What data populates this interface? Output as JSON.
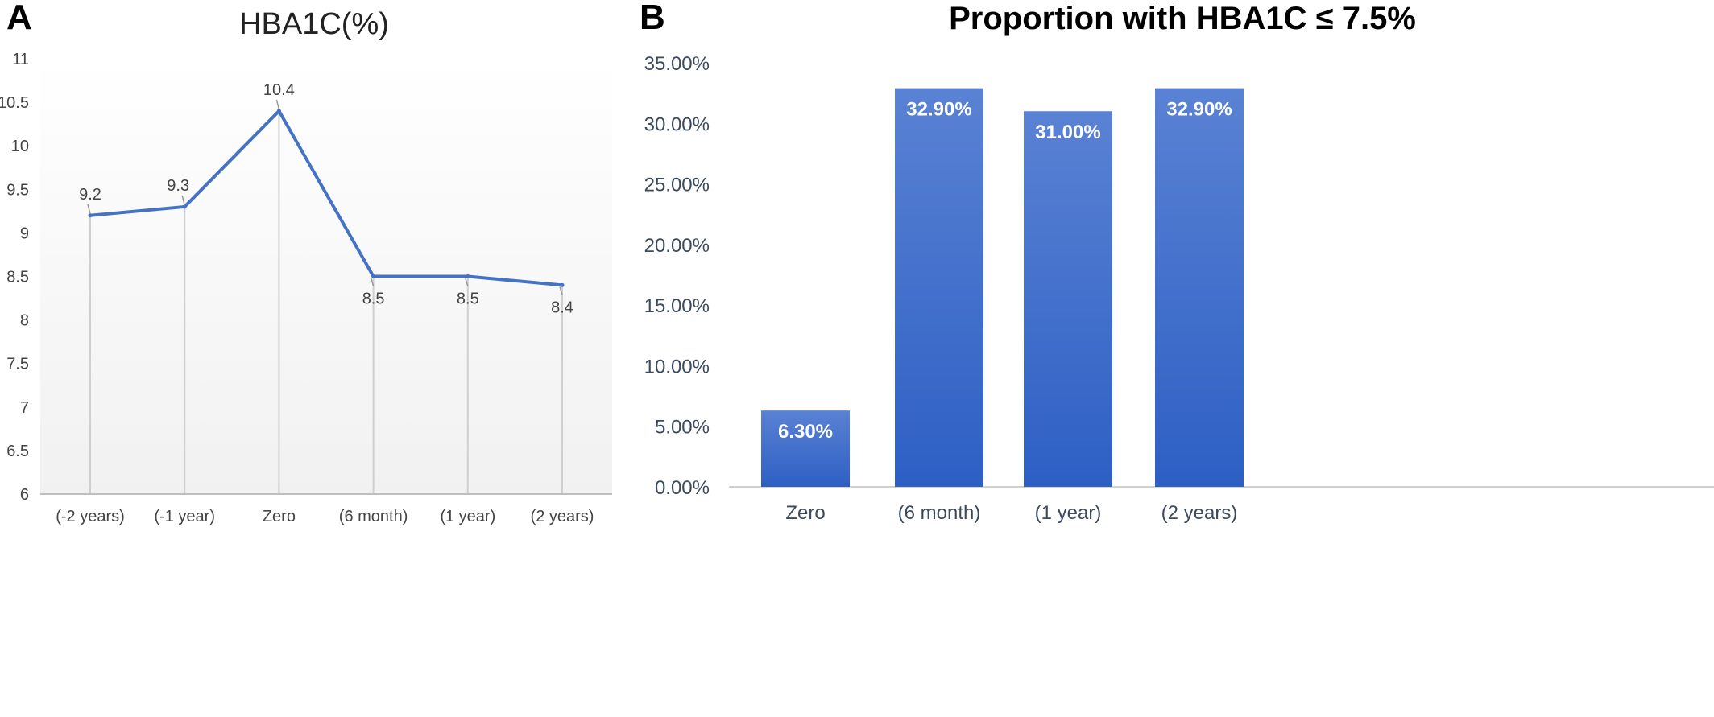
{
  "panels": {
    "a": {
      "letter": "A"
    },
    "b": {
      "letter": "B"
    }
  },
  "chart_data": [
    {
      "type": "line",
      "title": "HBA1C(%)",
      "xlabel": "",
      "ylabel": "",
      "categories": [
        "(-2 years)",
        "(-1 year)",
        "Zero",
        "(6 month)",
        "(1 year)",
        "(2 years)"
      ],
      "series": [
        {
          "values": [
            9.2,
            9.3,
            10.4,
            8.5,
            8.5,
            8.4
          ]
        }
      ],
      "data_labels": [
        "9.2",
        "9.3",
        "10.4",
        "8.5",
        "8.5",
        "8.4"
      ],
      "y_ticks": [
        "6",
        "6.5",
        "7",
        "7.5",
        "8",
        "8.5",
        "9",
        "9.5",
        "10",
        "10.5",
        "11"
      ],
      "ylim": [
        6,
        11
      ],
      "grid": false,
      "drop_lines": true,
      "line_color": "#4472c4"
    },
    {
      "type": "bar",
      "title": "Proportion with HBA1C ≤ 7.5%",
      "xlabel": "",
      "ylabel": "",
      "categories": [
        "Zero",
        "(6 month)",
        "(1 year)",
        "(2 years)"
      ],
      "values": [
        6.3,
        32.9,
        31.0,
        32.9
      ],
      "data_labels": [
        "6.30%",
        "32.90%",
        "31.00%",
        "32.90%"
      ],
      "y_ticks": [
        "0.00%",
        "5.00%",
        "10.00%",
        "15.00%",
        "20.00%",
        "25.00%",
        "30.00%",
        "35.00%"
      ],
      "ylim": [
        0,
        35
      ],
      "grid": false,
      "bar_color": "#3f6fd0"
    }
  ]
}
